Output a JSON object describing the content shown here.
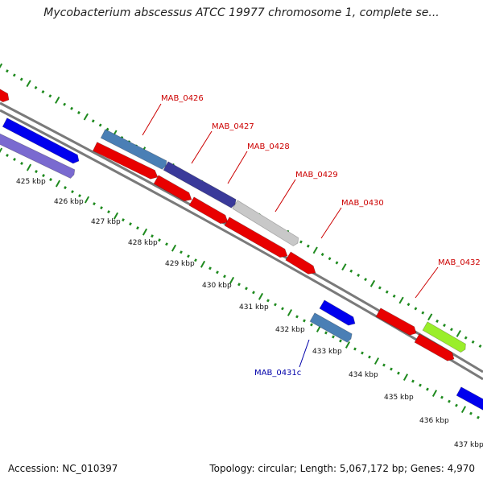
{
  "title": "Mycobacterium abscessus ATCC 19977 chromosome 1, complete se...",
  "footer": {
    "accession": "Accession: NC_010397",
    "stats": "Topology: circular; Length: 5,067,172 bp; Genes: 4,970"
  },
  "colors": {
    "backbone": "#7a7a7a",
    "tick": "#1e8a1e",
    "label_red": "#cc0000",
    "label_blue": "#0000aa"
  },
  "kbp_ticks": [
    "425 kbp",
    "426 kbp",
    "427 kbp",
    "428 kbp",
    "429 kbp",
    "430 kbp",
    "431 kbp",
    "432 kbp",
    "433 kbp",
    "434 kbp",
    "435 kbp",
    "436 kbp",
    "437 kbp"
  ],
  "genes": [
    {
      "label": "MAB_0426",
      "color": "#cc0000",
      "label_color": "#cc0000"
    },
    {
      "label": "MAB_0427",
      "color": "#cc0000",
      "label_color": "#cc0000"
    },
    {
      "label": "MAB_0428",
      "color": "#cc0000",
      "label_color": "#cc0000"
    },
    {
      "label": "MAB_0429",
      "color": "#cc0000",
      "label_color": "#cc0000"
    },
    {
      "label": "MAB_0430",
      "color": "#cc0000",
      "label_color": "#cc0000"
    },
    {
      "label": "MAB_0432",
      "color": "#cc0000",
      "label_color": "#cc0000"
    },
    {
      "label": "MAB_0431c",
      "color": "#0000aa",
      "label_color": "#0000aa"
    }
  ],
  "feature_colors": {
    "red": "#e80000",
    "blue": "#0000ee",
    "steel": "#4a7fb5",
    "navy": "#3a3a9a",
    "purple": "#7a6ad0",
    "grey": "#c8c8c8",
    "green": "#9aee2a"
  }
}
